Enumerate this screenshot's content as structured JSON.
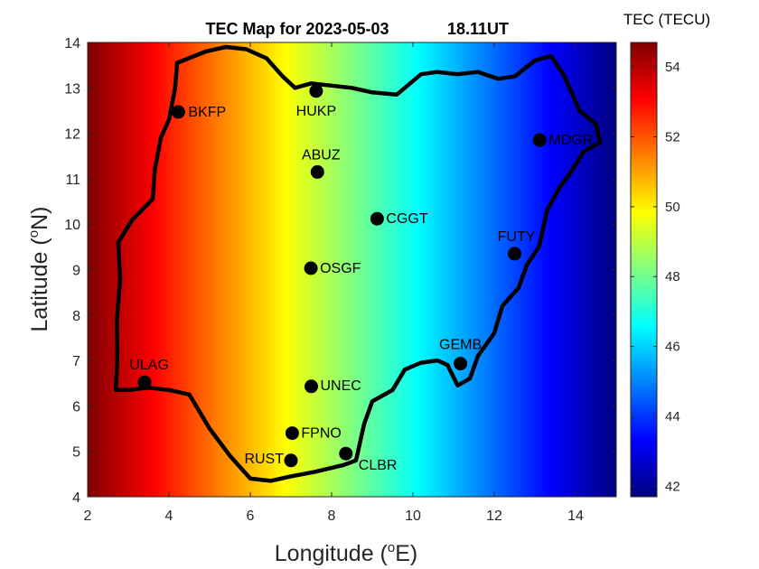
{
  "chart_data": {
    "type": "heatmap",
    "title": "TEC Map for 2023-05-03",
    "time_label": "18.11UT",
    "xlabel": "Longitude (",
    "xlabel_sup": "o",
    "xlabel_end": "E)",
    "ylabel": "Latitude (",
    "ylabel_sup": "o",
    "ylabel_end": "N)",
    "xlim": [
      2,
      15
    ],
    "ylim": [
      4,
      14
    ],
    "xticks": [
      2,
      4,
      6,
      8,
      10,
      12,
      14
    ],
    "yticks": [
      4,
      5,
      6,
      7,
      8,
      9,
      10,
      11,
      12,
      13,
      14
    ],
    "colorbar": {
      "title": "TEC (TECU)",
      "colormap": "jet",
      "clim": [
        41.7,
        54.7
      ],
      "ticks": [
        42,
        44,
        46,
        48,
        50,
        52,
        54
      ]
    },
    "tec_gradient": {
      "description": "TEC decreases roughly linearly from west to east",
      "lon": [
        2,
        15
      ],
      "tec": [
        54.7,
        41.7
      ]
    },
    "stations": [
      {
        "name": "BKFP",
        "lon": 4.23,
        "lat": 12.47
      },
      {
        "name": "HUKP",
        "lon": 7.62,
        "lat": 12.93
      },
      {
        "name": "MDGR",
        "lon": 13.12,
        "lat": 11.85
      },
      {
        "name": "ABUZ",
        "lon": 7.65,
        "lat": 11.15
      },
      {
        "name": "CGGT",
        "lon": 9.12,
        "lat": 10.12
      },
      {
        "name": "FUTY",
        "lon": 12.5,
        "lat": 9.35
      },
      {
        "name": "OSGF",
        "lon": 7.49,
        "lat": 9.03
      },
      {
        "name": "GEMB",
        "lon": 11.17,
        "lat": 6.93
      },
      {
        "name": "ULAG",
        "lon": 3.4,
        "lat": 6.52
      },
      {
        "name": "UNEC",
        "lon": 7.5,
        "lat": 6.43
      },
      {
        "name": "FPNO",
        "lon": 7.03,
        "lat": 5.4
      },
      {
        "name": "CLBR",
        "lon": 8.35,
        "lat": 4.95
      },
      {
        "name": "RUST",
        "lon": 7.0,
        "lat": 4.8
      }
    ],
    "boundary": [
      [
        2.69,
        6.35
      ],
      [
        2.73,
        7.0
      ],
      [
        2.72,
        7.9
      ],
      [
        2.8,
        8.8
      ],
      [
        2.75,
        9.6
      ],
      [
        3.1,
        10.1
      ],
      [
        3.6,
        10.55
      ],
      [
        3.65,
        11.2
      ],
      [
        3.8,
        11.9
      ],
      [
        4.0,
        12.3
      ],
      [
        4.15,
        13.0
      ],
      [
        4.2,
        13.55
      ],
      [
        4.9,
        13.8
      ],
      [
        5.4,
        13.9
      ],
      [
        5.9,
        13.85
      ],
      [
        6.4,
        13.65
      ],
      [
        6.8,
        13.25
      ],
      [
        7.1,
        13.0
      ],
      [
        7.5,
        13.1
      ],
      [
        8.0,
        13.05
      ],
      [
        8.5,
        13.0
      ],
      [
        9.0,
        12.9
      ],
      [
        9.6,
        12.85
      ],
      [
        10.2,
        13.3
      ],
      [
        10.6,
        13.35
      ],
      [
        11.1,
        13.3
      ],
      [
        11.6,
        13.35
      ],
      [
        12.1,
        13.2
      ],
      [
        12.5,
        13.25
      ],
      [
        13.0,
        13.6
      ],
      [
        13.4,
        13.7
      ],
      [
        13.7,
        13.3
      ],
      [
        14.1,
        12.5
      ],
      [
        14.5,
        12.2
      ],
      [
        14.6,
        11.8
      ],
      [
        14.2,
        11.6
      ],
      [
        13.85,
        11.1
      ],
      [
        13.6,
        10.8
      ],
      [
        13.3,
        10.3
      ],
      [
        13.1,
        9.5
      ],
      [
        12.8,
        9.1
      ],
      [
        12.6,
        8.6
      ],
      [
        12.2,
        8.2
      ],
      [
        12.0,
        7.6
      ],
      [
        11.6,
        7.1
      ],
      [
        11.4,
        6.6
      ],
      [
        11.1,
        6.45
      ],
      [
        10.85,
        6.9
      ],
      [
        10.6,
        7.0
      ],
      [
        10.2,
        6.95
      ],
      [
        9.8,
        6.8
      ],
      [
        9.5,
        6.35
      ],
      [
        9.0,
        6.1
      ],
      [
        8.8,
        5.6
      ],
      [
        8.6,
        4.8
      ],
      [
        8.3,
        4.7
      ],
      [
        7.6,
        4.55
      ],
      [
        7.0,
        4.45
      ],
      [
        6.5,
        4.35
      ],
      [
        6.0,
        4.4
      ],
      [
        5.5,
        4.9
      ],
      [
        5.0,
        5.5
      ],
      [
        4.5,
        6.25
      ],
      [
        4.0,
        6.35
      ],
      [
        3.5,
        6.4
      ],
      [
        3.0,
        6.35
      ],
      [
        2.69,
        6.35
      ]
    ]
  }
}
